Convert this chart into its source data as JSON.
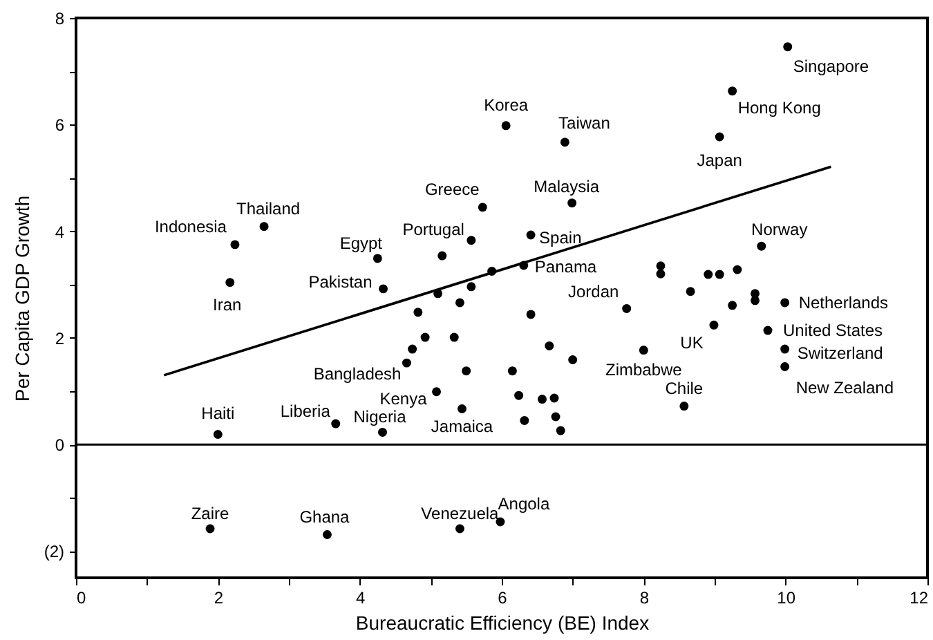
{
  "chart_data": {
    "type": "scatter",
    "xlabel": "Bureaucratic Efficiency (BE) Index",
    "ylabel": "Per Capita GDP Growth",
    "xlim": [
      0,
      12
    ],
    "ylim": [
      -2.5,
      8
    ],
    "xticks": [
      0,
      {
        "value": 1,
        "label": null
      },
      2,
      {
        "value": 3,
        "label": null
      },
      4,
      {
        "value": 5,
        "label": null
      },
      6,
      {
        "value": 7,
        "label": null
      },
      8,
      {
        "value": 9,
        "label": null
      },
      10,
      {
        "value": 11,
        "label": null
      },
      12
    ],
    "yticks": [
      {
        "value": -2,
        "label": "(2)"
      },
      {
        "value": -1,
        "label": null
      },
      0,
      {
        "value": 1,
        "label": null
      },
      2,
      {
        "value": 3,
        "label": null
      },
      4,
      {
        "value": 5,
        "label": null
      },
      6,
      {
        "value": 7,
        "label": null
      },
      8
    ],
    "grid": false,
    "marker": "circle",
    "series": [
      {
        "type": "scatter",
        "color": "#000000",
        "x": [
          10.03,
          9.25,
          9.07,
          6.06,
          6.89,
          6.99,
          5.73,
          2.65,
          2.24,
          5.57,
          4.25,
          5.16,
          6.41,
          2.17,
          4.33,
          9.66,
          6.31,
          5.86,
          5.57,
          5.1,
          5.41,
          4.82,
          4.92,
          5.33,
          4.74,
          4.66,
          5.5,
          5.08,
          5.44,
          4.32,
          3.66,
          2.0,
          1.89,
          3.54,
          5.41,
          5.98,
          8.66,
          7.76,
          9.25,
          9.57,
          9.57,
          9.99,
          9.75,
          8.99,
          9.99,
          9.99,
          8.0,
          8.57,
          6.41,
          6.67,
          7.0,
          6.15,
          6.24,
          6.57,
          6.74,
          6.32,
          6.76,
          6.83,
          8.24,
          8.24,
          8.91,
          9.07,
          9.32
        ],
        "values": [
          7.46,
          6.63,
          5.77,
          5.98,
          5.67,
          4.53,
          4.45,
          4.09,
          3.75,
          3.83,
          3.49,
          3.54,
          3.93,
          3.04,
          2.92,
          3.72,
          3.36,
          3.25,
          2.96,
          2.83,
          2.66,
          2.48,
          2.01,
          2.01,
          1.79,
          1.53,
          1.38,
          0.99,
          0.67,
          0.23,
          0.39,
          0.19,
          -1.58,
          -1.69,
          -1.58,
          -1.45,
          2.87,
          2.55,
          2.61,
          2.83,
          2.7,
          2.66,
          2.14,
          2.24,
          1.79,
          1.46,
          1.77,
          0.72,
          2.44,
          1.85,
          1.59,
          1.38,
          0.92,
          0.85,
          0.87,
          0.45,
          0.52,
          0.26,
          3.35,
          3.2,
          3.19,
          3.19,
          3.28
        ]
      },
      {
        "type": "line",
        "color": "#000000",
        "x": [
          1.24,
          10.64
        ],
        "values": [
          1.3,
          5.21
        ],
        "marker": "none",
        "line_style": "solid"
      }
    ],
    "ref_lines": [
      {
        "axis": "y",
        "value": 0,
        "color": "#000000",
        "line_style": "solid"
      }
    ],
    "annotations": [
      {
        "text": "Singapore",
        "x": 10.03,
        "y": 7.46
      },
      {
        "text": "Hong Kong",
        "x": 9.25,
        "y": 6.63
      },
      {
        "text": "Japan",
        "x": 9.07,
        "y": 5.77
      },
      {
        "text": "Korea",
        "x": 6.06,
        "y": 5.98
      },
      {
        "text": "Taiwan",
        "x": 6.89,
        "y": 5.67
      },
      {
        "text": "Malaysia",
        "x": 6.99,
        "y": 4.53
      },
      {
        "text": "Greece",
        "x": 5.73,
        "y": 4.45
      },
      {
        "text": "Thailand",
        "x": 2.65,
        "y": 4.09
      },
      {
        "text": "Indonesia",
        "x": 2.24,
        "y": 3.75
      },
      {
        "text": "Portugal",
        "x": 5.57,
        "y": 3.83
      },
      {
        "text": "Egypt",
        "x": 4.25,
        "y": 3.49
      },
      {
        "text": "Spain",
        "x": 6.41,
        "y": 3.93
      },
      {
        "text": "Iran",
        "x": 2.17,
        "y": 3.04
      },
      {
        "text": "Pakistan",
        "x": 4.33,
        "y": 2.92
      },
      {
        "text": "Norway",
        "x": 9.66,
        "y": 3.72
      },
      {
        "text": "Panama",
        "x": 6.31,
        "y": 3.36
      },
      {
        "text": "Jordan",
        "x": 7.76,
        "y": 2.55
      },
      {
        "text": "Netherlands",
        "x": 9.99,
        "y": 2.66
      },
      {
        "text": "United States",
        "x": 9.75,
        "y": 2.14
      },
      {
        "text": "UK",
        "x": 8.99,
        "y": 2.24
      },
      {
        "text": "Switzerland",
        "x": 9.99,
        "y": 1.79
      },
      {
        "text": "New Zealand",
        "x": 9.99,
        "y": 1.46
      },
      {
        "text": "Zimbabwe",
        "x": 8.0,
        "y": 1.77
      },
      {
        "text": "Chile",
        "x": 8.57,
        "y": 0.72
      },
      {
        "text": "Bangladesh",
        "x": 4.66,
        "y": 1.53
      },
      {
        "text": "Kenya",
        "x": 5.08,
        "y": 0.99
      },
      {
        "text": "Jamaica",
        "x": 5.44,
        "y": 0.67
      },
      {
        "text": "Nigeria",
        "x": 4.32,
        "y": 0.23
      },
      {
        "text": "Liberia",
        "x": 3.66,
        "y": 0.39
      },
      {
        "text": "Haiti",
        "x": 2.0,
        "y": 0.19
      },
      {
        "text": "Zaire",
        "x": 1.89,
        "y": -1.58
      },
      {
        "text": "Ghana",
        "x": 3.54,
        "y": -1.69
      },
      {
        "text": "Venezuela",
        "x": 5.41,
        "y": -1.58
      },
      {
        "text": "Angola",
        "x": 5.98,
        "y": -1.45
      }
    ]
  }
}
